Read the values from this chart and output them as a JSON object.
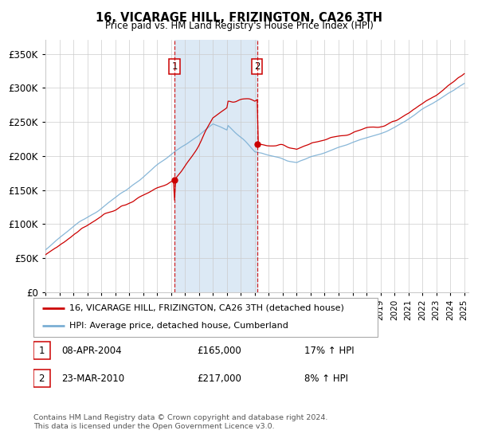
{
  "title": "16, VICARAGE HILL, FRIZINGTON, CA26 3TH",
  "subtitle": "Price paid vs. HM Land Registry's House Price Index (HPI)",
  "ylim": [
    0,
    370000
  ],
  "yticks": [
    0,
    50000,
    100000,
    150000,
    200000,
    250000,
    300000,
    350000
  ],
  "ytick_labels": [
    "£0",
    "£50K",
    "£100K",
    "£150K",
    "£200K",
    "£250K",
    "£300K",
    "£350K"
  ],
  "x_start_year": 1995,
  "x_end_year": 2025,
  "background_color": "#ffffff",
  "plot_bg_color": "#ffffff",
  "grid_color": "#cccccc",
  "hpi_color": "#7BAFD4",
  "price_color": "#cc0000",
  "purchase1_date": "08-APR-2004",
  "purchase1_price": 165000,
  "purchase1_pct": "17% ↑ HPI",
  "purchase2_date": "23-MAR-2010",
  "purchase2_price": 217000,
  "purchase2_pct": "8% ↑ HPI",
  "legend_line1": "16, VICARAGE HILL, FRIZINGTON, CA26 3TH (detached house)",
  "legend_line2": "HPI: Average price, detached house, Cumberland",
  "footer": "Contains HM Land Registry data © Crown copyright and database right 2024.\nThis data is licensed under the Open Government Licence v3.0.",
  "shaded_region_color": "#dce9f5",
  "marker_color": "#cc0000"
}
